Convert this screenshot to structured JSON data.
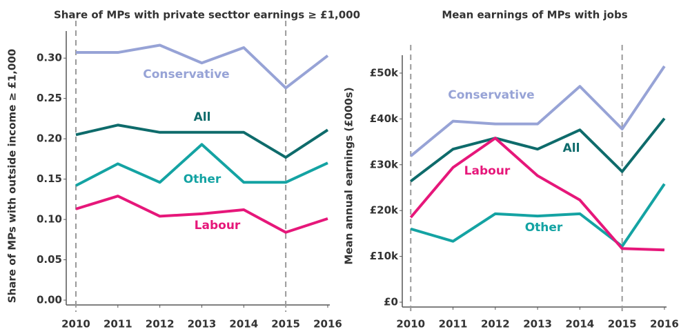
{
  "chart_data": [
    {
      "type": "line",
      "title": "Share of MPs with private secttor earnings ≥ £1,000",
      "y_label": "Share of MPs with outside income ≥ £1,000",
      "x": [
        2010,
        2011,
        2012,
        2013,
        2014,
        2015,
        2016
      ],
      "xlim": [
        2009.77,
        2016.05
      ],
      "xticks": [
        2010,
        2011,
        2012,
        2013,
        2014,
        2015,
        2016
      ],
      "ylim": [
        0,
        0.325
      ],
      "yticks": [
        {
          "value": 0,
          "label": "0.00"
        },
        {
          "value": 0.05,
          "label": "0.05"
        },
        {
          "value": 0.1,
          "label": "0.10"
        },
        {
          "value": 0.15,
          "label": "0.15"
        },
        {
          "value": 0.2,
          "label": "0.20"
        },
        {
          "value": 0.25,
          "label": "0.25"
        },
        {
          "value": 0.3,
          "label": "0.30"
        }
      ],
      "vlines": [
        2010,
        2015
      ],
      "series": [
        {
          "name": "Conservative",
          "color": "#97a3d6",
          "values": [
            0.307,
            0.307,
            0.316,
            0.294,
            0.313,
            0.263,
            0.303
          ]
        },
        {
          "name": "All",
          "color": "#0e6b6b",
          "values": [
            0.205,
            0.217,
            0.208,
            0.208,
            0.208,
            0.177,
            0.211
          ]
        },
        {
          "name": "Other",
          "color": "#14a3a3",
          "values": [
            0.142,
            0.169,
            0.146,
            0.193,
            0.146,
            0.146,
            0.17
          ]
        },
        {
          "name": "Labour",
          "color": "#e6177a",
          "values": [
            0.113,
            0.129,
            0.104,
            0.107,
            0.112,
            0.084,
            0.101
          ]
        }
      ]
    },
    {
      "type": "line",
      "title": "Mean earnings of MPs with jobs",
      "y_label": "Mean annual earnings (£000s)",
      "x": [
        2010,
        2011,
        2012,
        2013,
        2014,
        2015,
        2016
      ],
      "xlim": [
        2009.8,
        2016.05
      ],
      "xticks": [
        2010,
        2011,
        2012,
        2013,
        2014,
        2015,
        2016
      ],
      "ylim": [
        0,
        52.4
      ],
      "yticks": [
        {
          "value": 0,
          "label": "£0"
        },
        {
          "value": 10,
          "label": "£10k"
        },
        {
          "value": 20,
          "label": "£20k"
        },
        {
          "value": 30,
          "label": "£30k"
        },
        {
          "value": 40,
          "label": "£40k"
        },
        {
          "value": 50,
          "label": "£50k"
        }
      ],
      "vlines": [
        2010,
        2015
      ],
      "series": [
        {
          "name": "Conservative",
          "color": "#97a3d6",
          "values": [
            31.9,
            39.5,
            38.9,
            38.9,
            47.1,
            37.8,
            51.5
          ]
        },
        {
          "name": "All",
          "color": "#0e6b6b",
          "values": [
            26.4,
            33.4,
            35.8,
            33.4,
            37.6,
            28.5,
            40.1
          ]
        },
        {
          "name": "Other",
          "color": "#14a3a3",
          "values": [
            16.0,
            13.3,
            19.3,
            18.8,
            19.3,
            12.2,
            25.8
          ]
        },
        {
          "name": "Labour",
          "color": "#e6177a",
          "values": [
            18.5,
            29.4,
            35.8,
            27.6,
            22.3,
            11.7,
            11.4
          ]
        }
      ]
    }
  ]
}
